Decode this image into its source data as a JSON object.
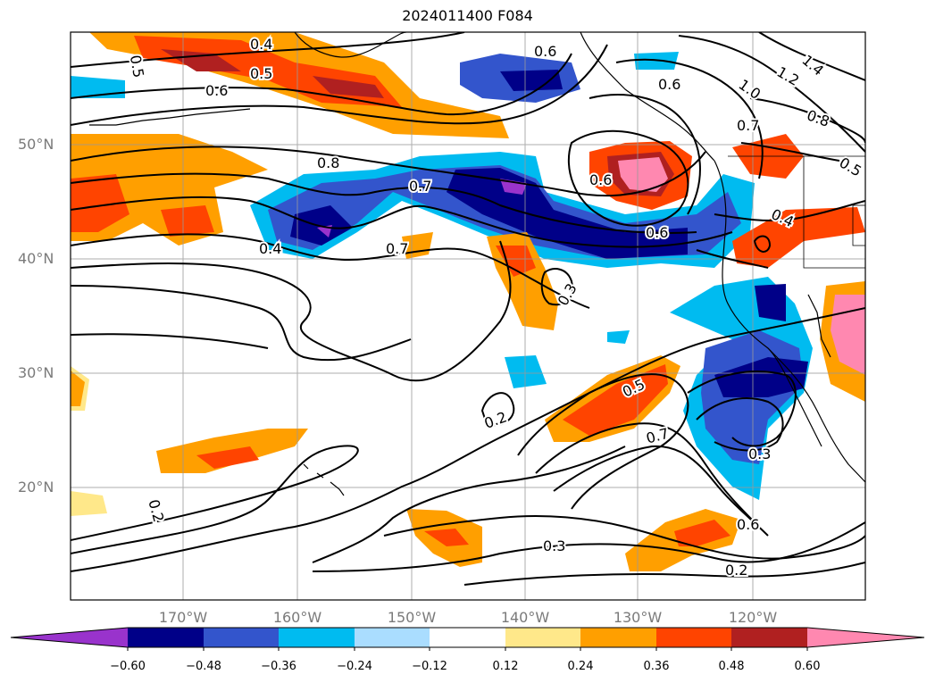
{
  "title": "2024011400 F084",
  "map": {
    "lat_labels": [
      "50°N",
      "40°N",
      "30°N",
      "20°N"
    ],
    "lon_labels": [
      "170°W",
      "160°W",
      "150°W",
      "140°W",
      "130°W",
      "120°W"
    ],
    "contour_labels": [
      "0.4",
      "0.5",
      "0.6",
      "0.5",
      "0.6",
      "0.6",
      "1.0",
      "1.2",
      "1.4",
      "0.8",
      "0.7",
      "0.5",
      "0.8",
      "0.7",
      "0.6",
      "0.6",
      "0.4",
      "0.4",
      "0.7",
      "0.3",
      "0.5",
      "0.2",
      "0.7",
      "0.3",
      "0.6",
      "0.3",
      "0.2",
      "0.2"
    ],
    "grid": true,
    "colors": {
      "purple": "#9933cc",
      "navy": "#000088",
      "blue": "#3355cc",
      "cyan": "#00bbf0",
      "lightblue": "#aaddff",
      "yellow": "#ffe88a",
      "orange": "#ff9f00",
      "redorange": "#ff4400",
      "darkred": "#b02020",
      "pink": "#ff88b0"
    }
  },
  "colorbar": {
    "ticks": [
      "−0.60",
      "−0.48",
      "−0.36",
      "−0.24",
      "−0.12",
      "0.12",
      "0.24",
      "0.36",
      "0.48",
      "0.60"
    ],
    "colors": [
      "#9933cc",
      "#000088",
      "#3355cc",
      "#2255dd",
      "#00bbf0",
      "#aaddff",
      "#ffffff",
      "#ffe88a",
      "#ff9f00",
      "#ff4400",
      "#b02020",
      "#ff88b0"
    ]
  }
}
